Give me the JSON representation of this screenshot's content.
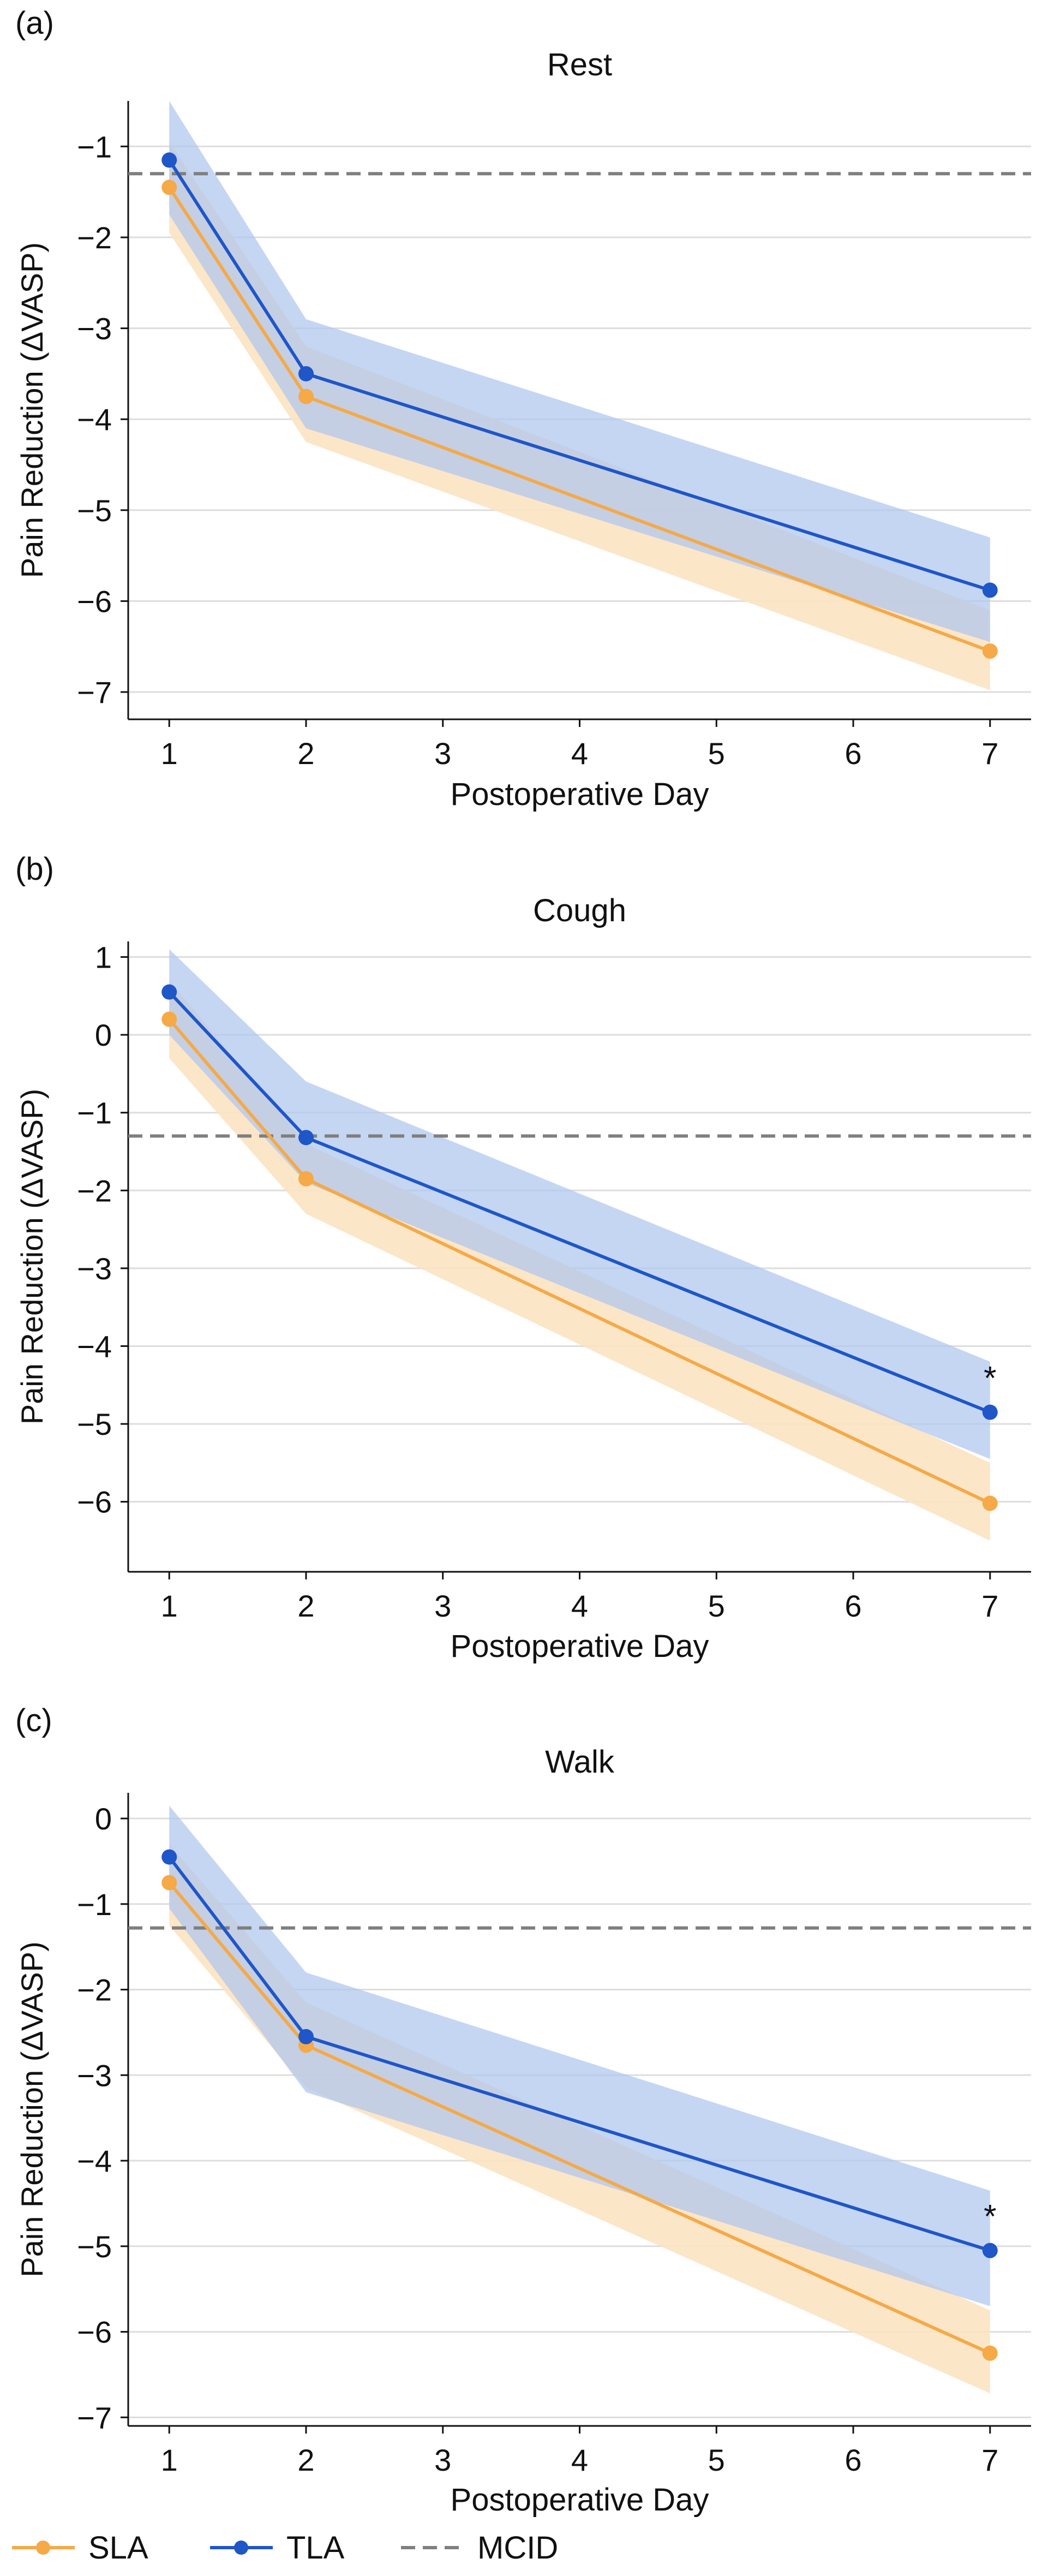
{
  "figure": {
    "legend": [
      {
        "key": "SLA",
        "label": "SLA",
        "style": "solid-marker"
      },
      {
        "key": "TLA",
        "label": "TLA",
        "style": "solid-marker"
      },
      {
        "key": "MCID",
        "label": "MCID",
        "style": "dashed"
      }
    ],
    "colors": {
      "SLA": "#F5A947",
      "SLA_band": "#FCE3C2",
      "TLA": "#1F56C8",
      "TLA_band": "#AFC6EE",
      "MCID": "#7f7f7f",
      "grid": "#dddddd",
      "axis": "#111111"
    }
  },
  "chart_data": [
    {
      "type": "line",
      "panel_label": "(a)",
      "title": "Rest",
      "xlabel": "Postoperative Day",
      "ylabel": "Pain Reduction (ΔVASP)",
      "x": [
        1,
        2,
        7
      ],
      "xticks": [
        1,
        2,
        3,
        4,
        5,
        6,
        7
      ],
      "xlim": [
        0.7,
        7.3
      ],
      "yticks": [
        -1,
        -2,
        -3,
        -4,
        -5,
        -6,
        -7
      ],
      "ylim": [
        -7.3,
        -0.5
      ],
      "mcid": -1.3,
      "series": [
        {
          "name": "SLA",
          "values": [
            -1.45,
            -3.75,
            -6.55
          ],
          "lower": [
            -1.95,
            -4.25,
            -6.98
          ],
          "upper": [
            -0.95,
            -3.2,
            -6.1
          ]
        },
        {
          "name": "TLA",
          "values": [
            -1.15,
            -3.5,
            -5.88
          ],
          "lower": [
            -1.75,
            -4.1,
            -6.45
          ],
          "upper": [
            -0.5,
            -2.9,
            -5.3
          ]
        }
      ],
      "annotations": []
    },
    {
      "type": "line",
      "panel_label": "(b)",
      "title": "Cough",
      "xlabel": "Postoperative Day",
      "ylabel": "Pain Reduction (ΔVASP)",
      "x": [
        1,
        2,
        7
      ],
      "xticks": [
        1,
        2,
        3,
        4,
        5,
        6,
        7
      ],
      "xlim": [
        0.7,
        7.3
      ],
      "yticks": [
        1,
        0,
        -1,
        -2,
        -3,
        -4,
        -5,
        -6
      ],
      "ylim": [
        -6.9,
        1.2
      ],
      "mcid": -1.3,
      "series": [
        {
          "name": "SLA",
          "values": [
            0.2,
            -1.85,
            -6.02
          ],
          "lower": [
            -0.3,
            -2.3,
            -6.5
          ],
          "upper": [
            0.7,
            -1.4,
            -5.5
          ]
        },
        {
          "name": "TLA",
          "values": [
            0.55,
            -1.32,
            -4.85
          ],
          "lower": [
            0.0,
            -1.9,
            -5.45
          ],
          "upper": [
            1.1,
            -0.6,
            -4.2
          ]
        }
      ],
      "annotations": [
        {
          "x": 7,
          "text": "*",
          "series": "TLA"
        }
      ]
    },
    {
      "type": "line",
      "panel_label": "(c)",
      "title": "Walk",
      "xlabel": "Postoperative Day",
      "ylabel": "Pain Reduction (ΔVASP)",
      "x": [
        1,
        2,
        7
      ],
      "xticks": [
        1,
        2,
        3,
        4,
        5,
        6,
        7
      ],
      "xlim": [
        0.7,
        7.3
      ],
      "yticks": [
        0,
        -1,
        -2,
        -3,
        -4,
        -5,
        -6,
        -7
      ],
      "ylim": [
        -7.1,
        0.3
      ],
      "mcid": -1.28,
      "series": [
        {
          "name": "SLA",
          "values": [
            -0.75,
            -2.65,
            -6.25
          ],
          "lower": [
            -1.25,
            -3.15,
            -6.72
          ],
          "upper": [
            -0.3,
            -2.15,
            -5.75
          ]
        },
        {
          "name": "TLA",
          "values": [
            -0.45,
            -2.55,
            -5.05
          ],
          "lower": [
            -1.05,
            -3.2,
            -5.7
          ],
          "upper": [
            0.15,
            -1.8,
            -4.35
          ]
        }
      ],
      "annotations": [
        {
          "x": 7,
          "text": "*",
          "series": "TLA"
        }
      ]
    }
  ]
}
